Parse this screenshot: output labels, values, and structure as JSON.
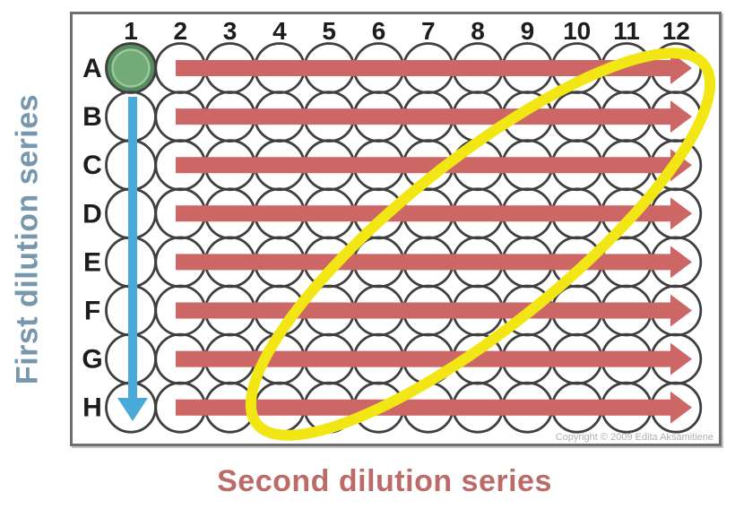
{
  "page": {
    "background": "#ffffff"
  },
  "labels": {
    "left": "First dilution series",
    "left_color": "#7697ac",
    "bottom": "Second dilution series",
    "bottom_color": "#bb6b68"
  },
  "plate": {
    "columns": [
      "1",
      "2",
      "3",
      "4",
      "5",
      "6",
      "7",
      "8",
      "9",
      "10",
      "11",
      "12"
    ],
    "rows": [
      "A",
      "B",
      "C",
      "D",
      "E",
      "F",
      "G",
      "H"
    ],
    "filled_well": "A1",
    "copyright": "Copyright © 2009 Edita Aksamitiene",
    "colors": {
      "border": "#6e6e6e",
      "border_shadow": "#c4c4c4",
      "well_outline": "#3f3f3f",
      "well_fill": "none",
      "filled_well_outer": "#568b5d",
      "filled_well_inner": "#72ab77",
      "filled_well_ring": "#9cc6a0",
      "vertical_arrow": "#49a9d8",
      "horizontal_arrow": "#cd6765",
      "highlight_ellipse": "#f2e614",
      "header_text": "#1c1c1c",
      "copyright_text": "#b5b0ab"
    },
    "annotations": {
      "vertical_arrow": {
        "from": "B1",
        "to": "H1"
      },
      "horizontal_arrows": {
        "from_column": "2",
        "to_column": "12",
        "rows": [
          "A",
          "B",
          "C",
          "D",
          "E",
          "F",
          "G",
          "H"
        ]
      },
      "highlight": "diagonal ellipse across plate from H4 to A12"
    }
  }
}
